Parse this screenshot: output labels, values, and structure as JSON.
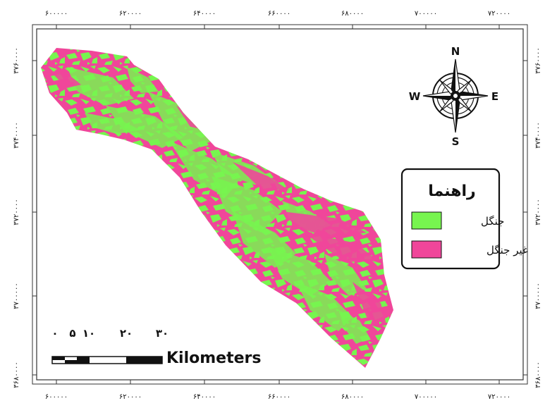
{
  "colors": {
    "forest": "#77f54f",
    "non_forest": "#f0469a",
    "frame": "#333333",
    "text": "#111111"
  },
  "axes": {
    "x_ticks": [
      "۶۰۰۰۰۰",
      "۶۲۰۰۰۰",
      "۶۴۰۰۰۰",
      "۶۶۰۰۰۰",
      "۶۸۰۰۰۰",
      "۷۰۰۰۰۰",
      "۷۲۰۰۰۰"
    ],
    "y_ticks": [
      "۳۷۶۰۰۰۰",
      "۳۷۴۰۰۰۰",
      "۳۷۲۰۰۰۰",
      "۳۷۰۰۰۰۰",
      "۳۶۸۰۰۰۰"
    ]
  },
  "north_arrow": {
    "icon": "compass-rose-icon",
    "n": "N",
    "s": "S",
    "e": "E",
    "w": "W"
  },
  "legend": {
    "title": "راهنما",
    "items": [
      {
        "label": "جنگل",
        "color_key": "forest"
      },
      {
        "label": "غیر جنگل",
        "color_key": "non_forest"
      }
    ]
  },
  "scale_bar": {
    "tick_labels": [
      "۰",
      "۵",
      "۱۰",
      "۲۰",
      "۳۰"
    ],
    "unit": "Kilometers"
  }
}
